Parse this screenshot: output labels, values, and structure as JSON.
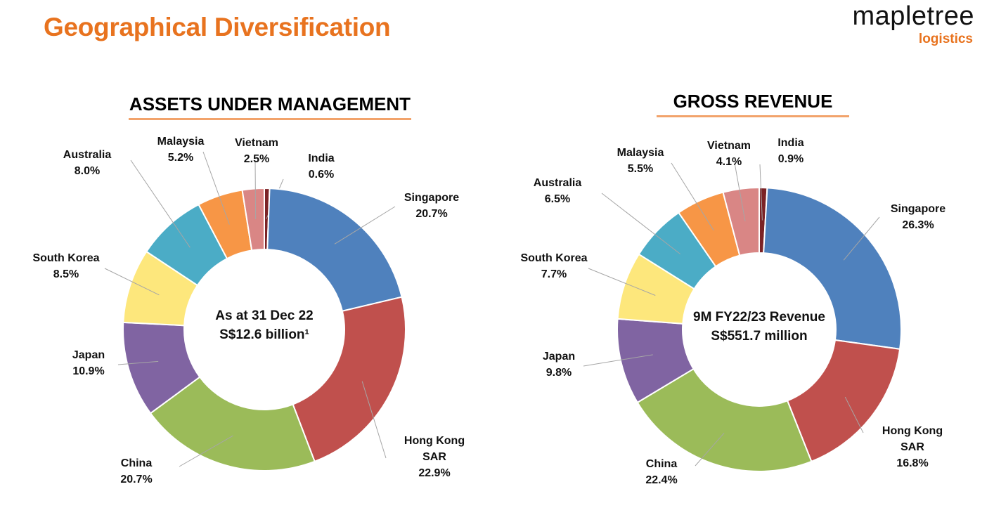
{
  "page": {
    "title": "Geographical Diversification"
  },
  "logo": {
    "word": "mapletree",
    "sub": "logistics"
  },
  "chart_data": [
    {
      "type": "pie",
      "title": "ASSETS UNDER MANAGEMENT",
      "center_text": [
        "As at 31 Dec 22",
        "S$12.6 billion¹"
      ],
      "categories": [
        "India",
        "Singapore",
        "Hong Kong SAR",
        "China",
        "Japan",
        "South Korea",
        "Australia",
        "Malaysia",
        "Vietnam"
      ],
      "values": [
        0.6,
        20.7,
        22.9,
        20.7,
        10.9,
        8.5,
        8.0,
        5.2,
        2.5
      ],
      "labels": [
        [
          "India",
          "0.6%"
        ],
        [
          "Singapore",
          "20.7%"
        ],
        [
          "Hong Kong",
          "SAR",
          "22.9%"
        ],
        [
          "China",
          "20.7%"
        ],
        [
          "Japan",
          "10.9%"
        ],
        [
          "South Korea",
          "8.5%"
        ],
        [
          "Australia",
          "8.0%"
        ],
        [
          "Malaysia",
          "5.2%"
        ],
        [
          "Vietnam",
          "2.5%"
        ]
      ],
      "colors": [
        "#7b2326",
        "#4f81bd",
        "#c0504d",
        "#9bbb59",
        "#8064a2",
        "#fde77c",
        "#4bacc6",
        "#f79646",
        "#d98685"
      ]
    },
    {
      "type": "pie",
      "title": "GROSS REVENUE",
      "center_text": [
        "9M FY22/23 Revenue",
        "S$551.7 million"
      ],
      "categories": [
        "India",
        "Singapore",
        "Hong Kong SAR",
        "China",
        "Japan",
        "South Korea",
        "Australia",
        "Malaysia",
        "Vietnam"
      ],
      "values": [
        0.9,
        26.3,
        16.8,
        22.4,
        9.8,
        7.7,
        6.5,
        5.5,
        4.1
      ],
      "labels": [
        [
          "India",
          "0.9%"
        ],
        [
          "Singapore",
          "26.3%"
        ],
        [
          "Hong Kong",
          "SAR",
          "16.8%"
        ],
        [
          "China",
          "22.4%"
        ],
        [
          "Japan",
          "9.8%"
        ],
        [
          "South Korea",
          "7.7%"
        ],
        [
          "Australia",
          "6.5%"
        ],
        [
          "Malaysia",
          "5.5%"
        ],
        [
          "Vietnam",
          "4.1%"
        ]
      ],
      "colors": [
        "#7b2326",
        "#4f81bd",
        "#c0504d",
        "#9bbb59",
        "#8064a2",
        "#fde77c",
        "#4bacc6",
        "#f79646",
        "#d98685"
      ]
    }
  ]
}
